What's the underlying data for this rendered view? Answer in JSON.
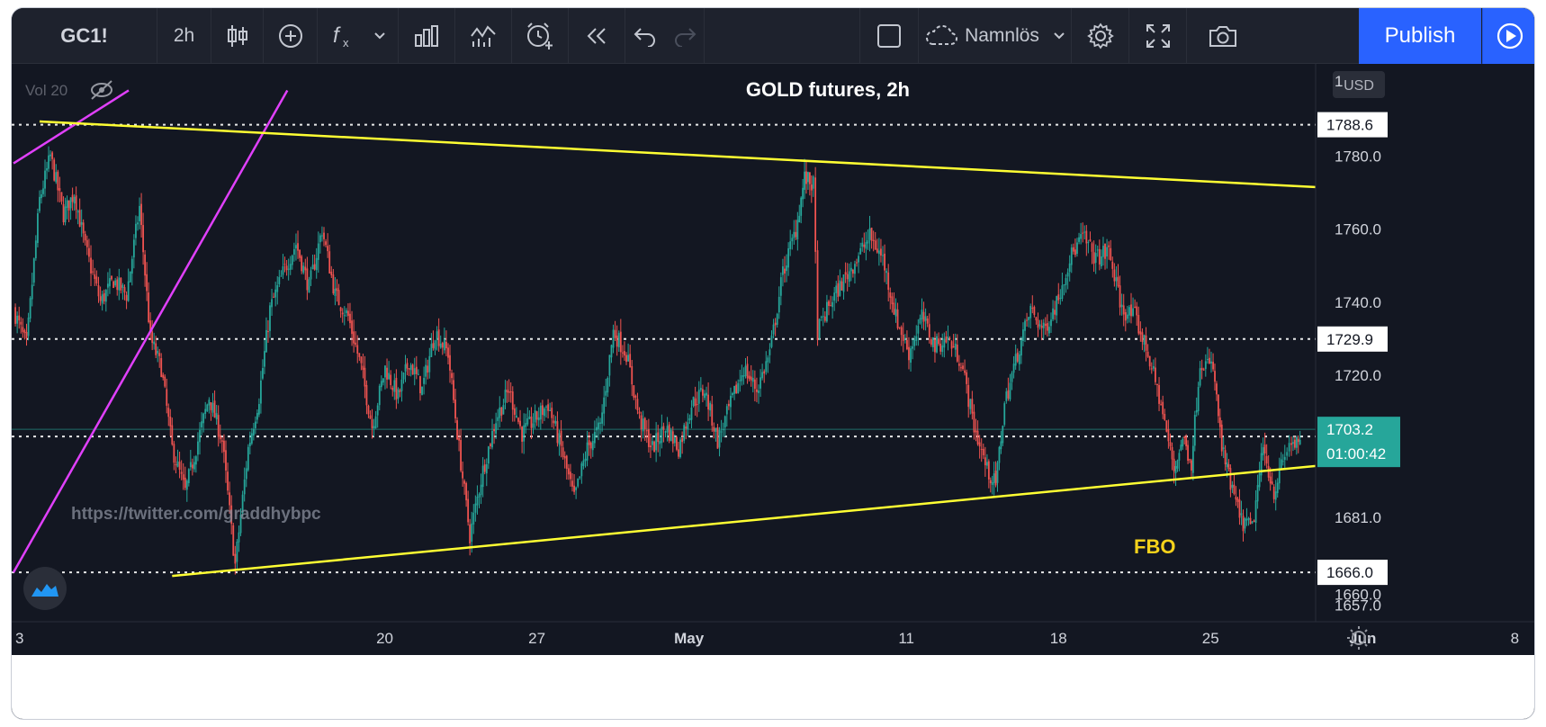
{
  "toolbar": {
    "symbol": "GC1!",
    "interval": "2h",
    "layout_name": "Namnlös",
    "publish_label": "Publish",
    "icons": [
      "candles-icon",
      "add-circle-icon",
      "indicators-fx-icon",
      "chevron-down-icon",
      "bar-chart-icon",
      "templates-icon",
      "alert-clock-icon",
      "replay-icon",
      "undo-icon",
      "redo-icon",
      "layout-square-icon",
      "cloud-icon",
      "chevron-down-icon",
      "settings-gear-icon",
      "fullscreen-icon",
      "camera-icon",
      "play-icon"
    ]
  },
  "legend": {
    "volume_label": "Vol 20"
  },
  "currency_badge": "USD",
  "watermark": "https://twitter.com/graddhybpc",
  "annotations": {
    "fbo_label": "FBO"
  },
  "price_badges": {
    "current_price": "1703.2",
    "countdown": "01:00:42"
  },
  "colors": {
    "background": "#131722",
    "up_candle": "#26a69a",
    "down_candle": "#ef5350",
    "trendline": "#ffff33",
    "channel_line": "#e040fb",
    "current_price": "#26a69a",
    "level_line": "#ffffff"
  },
  "chart_data": {
    "type": "candlestick",
    "title": "GOLD futures, 2h",
    "ylim": [
      1650,
      1795
    ],
    "y_ticks": [
      1657.0,
      1681.0,
      1720.0,
      1740.0,
      1760.0,
      1780.0
    ],
    "top_clipped_tick": "1",
    "overlapped_tick": "1660.0",
    "x_ticks": [
      {
        "label": "3",
        "day": 0
      },
      {
        "label": "20",
        "day": 17
      },
      {
        "label": "27",
        "day": 24
      },
      {
        "label": "May",
        "day": 31
      },
      {
        "label": "11",
        "day": 41
      },
      {
        "label": "18",
        "day": 48
      },
      {
        "label": "25",
        "day": 55
      },
      {
        "label": "Jun",
        "day": 62
      },
      {
        "label": "8",
        "day": 69
      }
    ],
    "horizontal_levels": [
      {
        "value": 1788.6,
        "label": "1788.6"
      },
      {
        "value": 1729.9,
        "label": "1729.9"
      },
      {
        "value": 1703.2,
        "label": "1703.2"
      },
      {
        "value": 1666.0,
        "label": "1666.0"
      }
    ],
    "trendlines": [
      {
        "name": "",
        "from": {
          "day": 1.2,
          "price": 1789.5
        },
        "to": {
          "day": 71.4,
          "price": 1768.0
        }
      },
      {
        "name": "",
        "from": {
          "day": 7.3,
          "price": 1665.0
        },
        "to": {
          "day": 71.4,
          "price": 1701.7
        },
        "label": "1701.7"
      }
    ],
    "channel_lines": [
      {
        "from": {
          "day": 0,
          "price": 1666
        },
        "to": {
          "day": 12.6,
          "price": 1798
        }
      },
      {
        "from": {
          "day": 0,
          "price": 1778
        },
        "to": {
          "day": 5.3,
          "price": 1798
        }
      }
    ],
    "path": [
      [
        0,
        1738
      ],
      [
        0.6,
        1728
      ],
      [
        1.2,
        1768
      ],
      [
        1.7,
        1780
      ],
      [
        2.3,
        1764
      ],
      [
        2.8,
        1770
      ],
      [
        3.3,
        1755
      ],
      [
        4.0,
        1740
      ],
      [
        4.6,
        1746
      ],
      [
        5.2,
        1742
      ],
      [
        5.8,
        1766
      ],
      [
        6.3,
        1730
      ],
      [
        6.8,
        1722
      ],
      [
        7.3,
        1700
      ],
      [
        7.9,
        1688
      ],
      [
        8.4,
        1700
      ],
      [
        9.0,
        1714
      ],
      [
        9.6,
        1702
      ],
      [
        10.2,
        1668
      ],
      [
        10.8,
        1700
      ],
      [
        11.3,
        1714
      ],
      [
        11.8,
        1738
      ],
      [
        12.4,
        1748
      ],
      [
        13.0,
        1756
      ],
      [
        13.6,
        1744
      ],
      [
        14.2,
        1760
      ],
      [
        14.8,
        1742
      ],
      [
        15.4,
        1736
      ],
      [
        16.0,
        1722
      ],
      [
        16.5,
        1706
      ],
      [
        17.1,
        1722
      ],
      [
        17.7,
        1714
      ],
      [
        18.2,
        1724
      ],
      [
        18.8,
        1716
      ],
      [
        19.4,
        1732
      ],
      [
        20.0,
        1726
      ],
      [
        20.5,
        1700
      ],
      [
        21.0,
        1676
      ],
      [
        21.6,
        1694
      ],
      [
        22.2,
        1708
      ],
      [
        22.8,
        1716
      ],
      [
        23.4,
        1704
      ],
      [
        24.0,
        1708
      ],
      [
        24.6,
        1712
      ],
      [
        25.2,
        1700
      ],
      [
        25.8,
        1686
      ],
      [
        26.4,
        1700
      ],
      [
        27.0,
        1706
      ],
      [
        27.6,
        1732
      ],
      [
        28.2,
        1726
      ],
      [
        28.8,
        1708
      ],
      [
        29.4,
        1700
      ],
      [
        30.0,
        1706
      ],
      [
        30.6,
        1700
      ],
      [
        31.2,
        1712
      ],
      [
        31.8,
        1716
      ],
      [
        32.4,
        1702
      ],
      [
        33.0,
        1712
      ],
      [
        33.6,
        1722
      ],
      [
        34.2,
        1716
      ],
      [
        34.8,
        1726
      ],
      [
        35.4,
        1748
      ],
      [
        36.0,
        1760
      ],
      [
        36.4,
        1774
      ],
      [
        36.8,
        1772
      ],
      [
        37.0,
        1732
      ],
      [
        37.6,
        1740
      ],
      [
        38.2,
        1746
      ],
      [
        38.8,
        1752
      ],
      [
        39.4,
        1758
      ],
      [
        40.0,
        1752
      ],
      [
        40.6,
        1736
      ],
      [
        41.2,
        1726
      ],
      [
        41.8,
        1736
      ],
      [
        42.4,
        1728
      ],
      [
        43.0,
        1730
      ],
      [
        43.6,
        1724
      ],
      [
        44.2,
        1706
      ],
      [
        44.8,
        1694
      ],
      [
        45.2,
        1690
      ],
      [
        45.6,
        1712
      ],
      [
        46.2,
        1726
      ],
      [
        46.8,
        1738
      ],
      [
        47.4,
        1732
      ],
      [
        48.0,
        1740
      ],
      [
        48.6,
        1752
      ],
      [
        49.2,
        1758
      ],
      [
        49.8,
        1752
      ],
      [
        50.4,
        1754
      ],
      [
        51.0,
        1738
      ],
      [
        51.6,
        1736
      ],
      [
        52.2,
        1726
      ],
      [
        52.8,
        1712
      ],
      [
        53.4,
        1694
      ],
      [
        53.8,
        1703
      ],
      [
        54.2,
        1696
      ],
      [
        54.6,
        1724
      ],
      [
        55.2,
        1722
      ],
      [
        55.6,
        1700
      ],
      [
        56.0,
        1690
      ],
      [
        56.5,
        1680
      ],
      [
        57.0,
        1678
      ],
      [
        57.5,
        1700
      ],
      [
        58.0,
        1688
      ],
      [
        58.5,
        1698
      ],
      [
        58.8,
        1702
      ],
      [
        59.2,
        1700
      ]
    ]
  }
}
